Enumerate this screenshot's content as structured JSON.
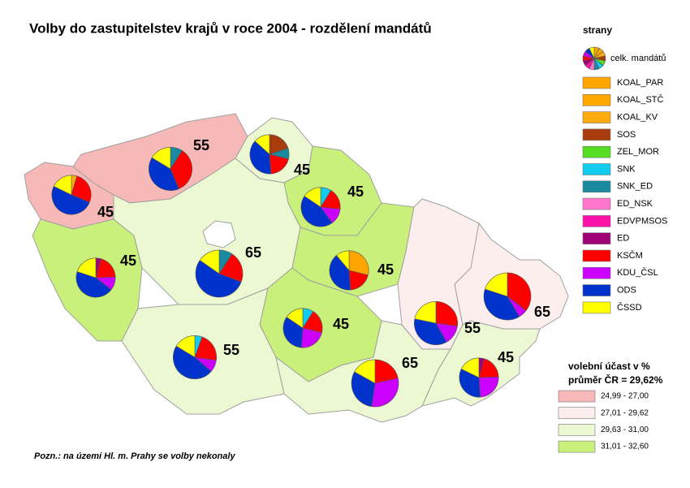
{
  "title": "Volby do zastupitelstev krajů v roce 2004 - rozdělení mandátů",
  "note": "Pozn.: na území Hl. m. Prahy se volby nekonaly",
  "legend": {
    "title": "strany",
    "pie_label": "celk. mandátů",
    "parties": [
      {
        "name": "KOAL_PAR",
        "color": "#ffa500"
      },
      {
        "name": "KOAL_STČ",
        "color": "#ffa800"
      },
      {
        "name": "KOAL_KV",
        "color": "#ffab10"
      },
      {
        "name": "SOS",
        "color": "#a83c0c"
      },
      {
        "name": "ZEL_MOR",
        "color": "#55dd22"
      },
      {
        "name": "SNK",
        "color": "#11ccee"
      },
      {
        "name": "SNK_ED",
        "color": "#1a8aa0"
      },
      {
        "name": "ED_NSK",
        "color": "#ff77cc"
      },
      {
        "name": "EDVPMSOS",
        "color": "#ff11aa"
      },
      {
        "name": "ED",
        "color": "#a00078"
      },
      {
        "name": "KSČM",
        "color": "#ff0000"
      },
      {
        "name": "KDU_ČSL",
        "color": "#cc00ff"
      },
      {
        "name": "ODS",
        "color": "#0033cc"
      },
      {
        "name": "ČSSD",
        "color": "#ffff00"
      }
    ]
  },
  "turnout_legend": {
    "title": "volební účast v %",
    "subtitle": "průměr ČR = 29,62%",
    "classes": [
      {
        "label": "24,99 - 27,00",
        "color": "#f7b8b8"
      },
      {
        "label": "27,01 - 29,62",
        "color": "#fdeeee"
      },
      {
        "label": "29,63 - 31,00",
        "color": "#ecf8d2"
      },
      {
        "label": "31,01 - 32,60",
        "color": "#c8f07a"
      }
    ]
  },
  "regions": [
    {
      "seats": 45,
      "color": "#f7b8b8",
      "values": [
        0,
        0,
        2,
        0,
        0,
        0,
        0,
        0,
        0,
        0,
        12,
        0,
        23,
        8
      ]
    },
    {
      "seats": 55,
      "color": "#f7b8b8",
      "values": [
        0,
        0,
        0,
        0,
        0,
        0,
        5,
        0,
        0,
        0,
        19,
        0,
        22,
        9
      ]
    },
    {
      "seats": 45,
      "color": "#ecf8d2",
      "values": [
        0,
        0,
        0,
        9,
        0,
        0,
        4,
        0,
        0,
        0,
        9,
        0,
        17,
        6
      ]
    },
    {
      "seats": 45,
      "color": "#c8f07a",
      "values": [
        0,
        0,
        0,
        0,
        0,
        4,
        0,
        0,
        0,
        0,
        8,
        6,
        20,
        7
      ]
    },
    {
      "seats": 45,
      "color": "#c8f07a",
      "values": [
        0,
        0,
        0,
        0,
        0,
        0,
        0,
        0,
        0,
        2,
        9,
        5,
        20,
        9
      ]
    },
    {
      "seats": 65,
      "color": "#ecf8d2",
      "values": [
        0,
        0,
        0,
        0,
        0,
        0,
        6,
        0,
        0,
        0,
        14,
        0,
        35,
        10
      ]
    },
    {
      "seats": 45,
      "color": "#c8f07a",
      "values": [
        13,
        0,
        0,
        0,
        0,
        0,
        0,
        0,
        0,
        0,
        9,
        0,
        18,
        5
      ]
    },
    {
      "seats": 55,
      "color": "#fdeeee",
      "values": [
        0,
        0,
        0,
        0,
        0,
        0,
        0,
        0,
        0,
        0,
        15,
        8,
        20,
        12
      ]
    },
    {
      "seats": 65,
      "color": "#fdeeee",
      "values": [
        0,
        0,
        0,
        0,
        0,
        0,
        0,
        0,
        0,
        0,
        23,
        4,
        25,
        13
      ]
    },
    {
      "seats": 45,
      "color": "#c8f07a",
      "values": [
        0,
        0,
        0,
        0,
        0,
        4,
        0,
        0,
        0,
        0,
        9,
        10,
        15,
        7
      ]
    },
    {
      "seats": 55,
      "color": "#ecf8d2",
      "values": [
        0,
        0,
        0,
        0,
        0,
        3,
        0,
        0,
        0,
        0,
        12,
        5,
        26,
        9
      ]
    },
    {
      "seats": 65,
      "color": "#ecf8d2",
      "values": [
        0,
        0,
        0,
        0,
        0,
        0,
        0,
        0,
        0,
        0,
        14,
        20,
        20,
        11
      ]
    },
    {
      "seats": 45,
      "color": "#ecf8d2",
      "values": [
        0,
        0,
        0,
        0,
        0,
        0,
        0,
        0,
        0,
        2,
        9,
        11,
        15,
        8
      ]
    }
  ]
}
